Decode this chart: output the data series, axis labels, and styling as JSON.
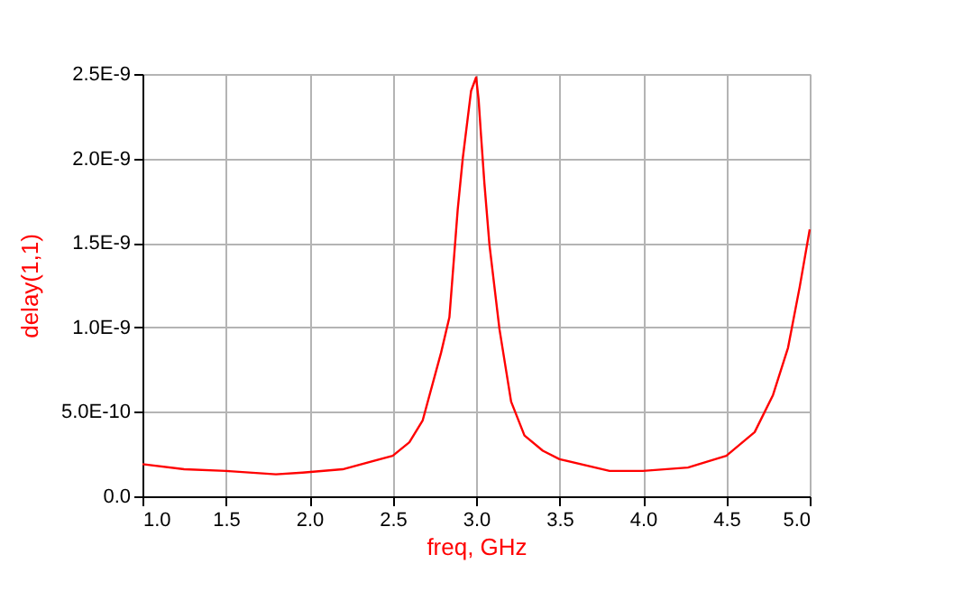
{
  "chart_data": {
    "type": "line",
    "xlabel": "freq, GHz",
    "ylabel": "delay(1,1)",
    "xlim": [
      1.0,
      5.0
    ],
    "xticks": [
      {
        "value": 1.0,
        "label": "1.0"
      },
      {
        "value": 1.5,
        "label": "1.5"
      },
      {
        "value": 2.0,
        "label": "2.0"
      },
      {
        "value": 2.5,
        "label": "2.5"
      },
      {
        "value": 3.0,
        "label": "3.0"
      },
      {
        "value": 3.5,
        "label": "3.5"
      },
      {
        "value": 4.0,
        "label": "4.0"
      },
      {
        "value": 4.5,
        "label": "4.5"
      },
      {
        "value": 5.0,
        "label": "5.0"
      }
    ],
    "ylim": [
      0,
      2.5e-09
    ],
    "yticks": [
      {
        "value": 0,
        "label": "0.0"
      },
      {
        "value": 5e-10,
        "label": "5.0E-10"
      },
      {
        "value": 1e-09,
        "label": "1.0E-9"
      },
      {
        "value": 1.5e-09,
        "label": "1.5E-9"
      },
      {
        "value": 2e-09,
        "label": "2.0E-9"
      },
      {
        "value": 2.5e-09,
        "label": "2.5E-9"
      }
    ],
    "grid": true,
    "marker": "none",
    "line_style": "solid",
    "series": [
      {
        "color": "#ff0000",
        "x": [
          1.0,
          1.25,
          1.5,
          1.8,
          1.96,
          2.2,
          2.5,
          2.6,
          2.68,
          2.79,
          2.84,
          2.89,
          2.92,
          2.95,
          2.97,
          3.0,
          3.015,
          3.03,
          3.05,
          3.08,
          3.14,
          3.21,
          3.29,
          3.4,
          3.5,
          3.8,
          4.0,
          4.27,
          4.5,
          4.67,
          4.78,
          4.87,
          4.94,
          5.0
        ],
        "values": [
          1.9e-10,
          1.6e-10,
          1.5e-10,
          1.3e-10,
          1.4e-10,
          1.6e-10,
          2.4e-10,
          3.2e-10,
          4.5e-10,
          8.5e-10,
          1.06e-09,
          1.7e-09,
          2e-09,
          2.24e-09,
          2.4e-09,
          2.48e-09,
          2.35e-09,
          2.13e-09,
          1.85e-09,
          1.49e-09,
          9.9e-10,
          5.6e-10,
          3.6e-10,
          2.7e-10,
          2.2e-10,
          1.5e-10,
          1.5e-10,
          1.7e-10,
          2.4e-10,
          3.8e-10,
          6e-10,
          8.8e-10,
          1.24e-09,
          1.58e-09
        ]
      }
    ]
  }
}
